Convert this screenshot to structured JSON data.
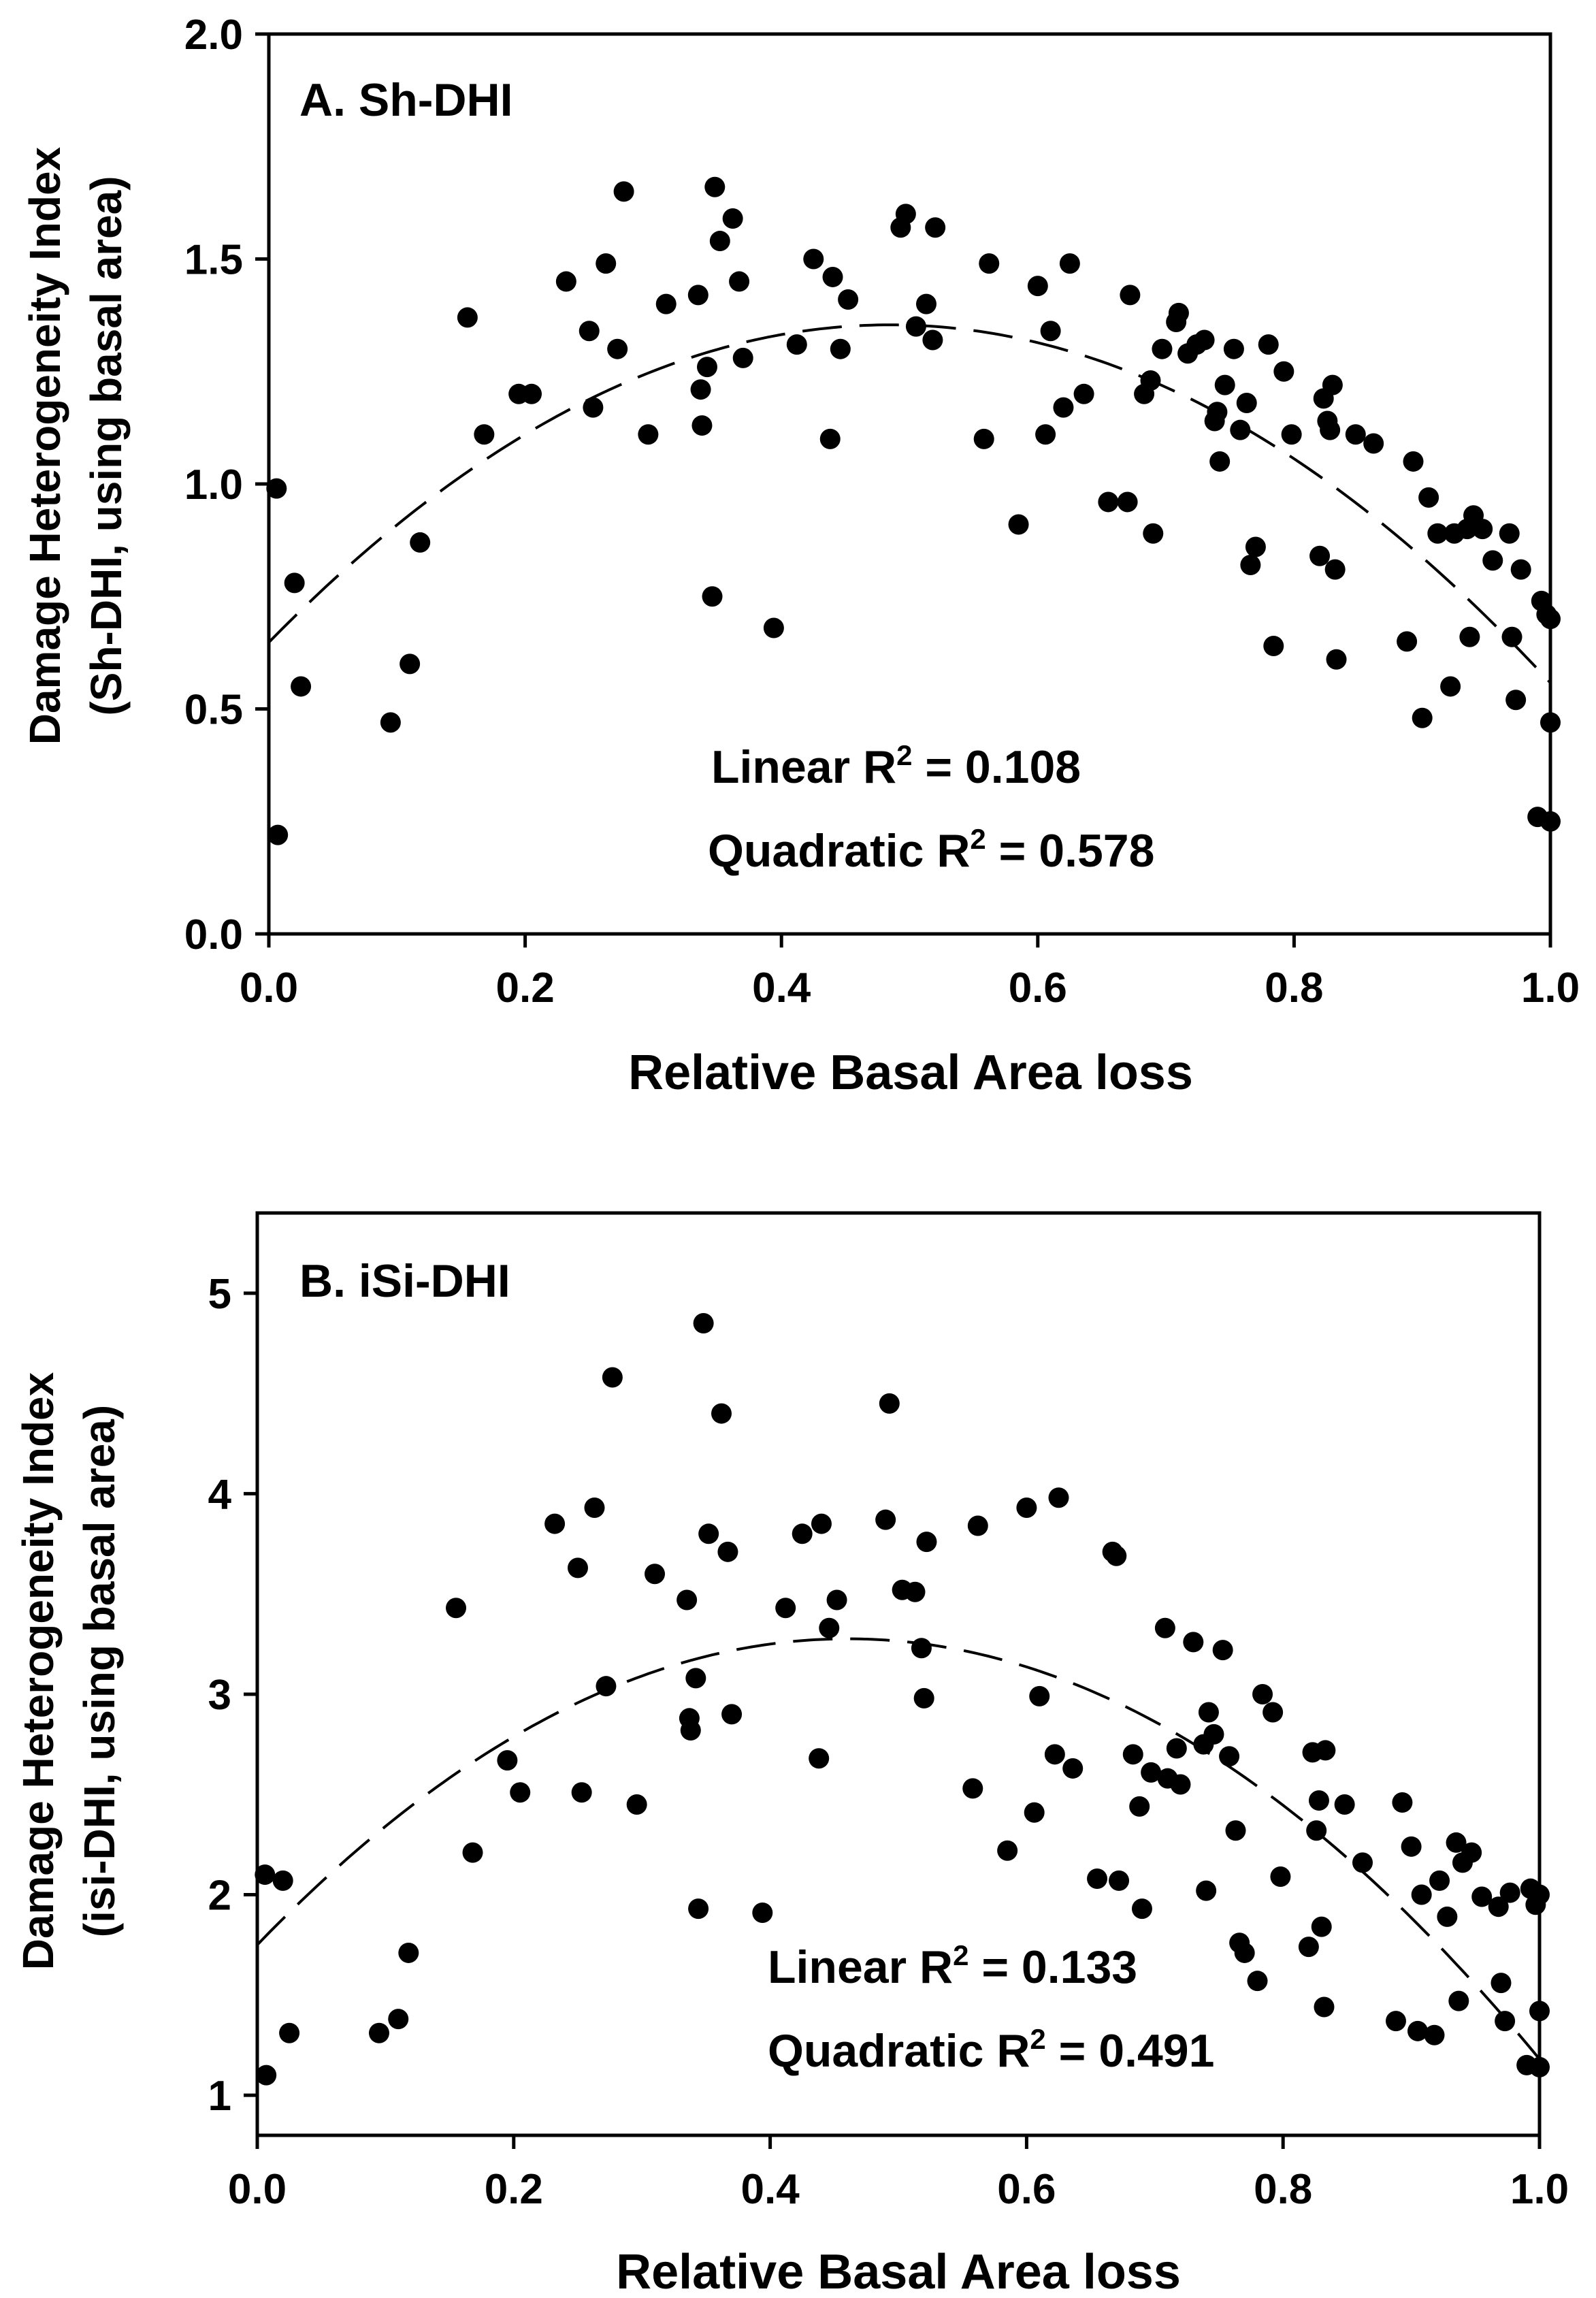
{
  "chart_data": [
    {
      "type": "scatter",
      "panel_label": "A. Sh-DHI",
      "xlabel": "Relative Basal Area loss",
      "ylabel_line1": "Damage Heterogeneity Index",
      "ylabel_line2": "(Sh-DHI, using basal area)",
      "xlim": [
        0,
        1
      ],
      "ylim": [
        0,
        2
      ],
      "x_ticks": [
        "0.0",
        "0.2",
        "0.4",
        "0.6",
        "0.8",
        "1.0"
      ],
      "y_ticks": [
        "0.0",
        "0.5",
        "1.0",
        "1.5",
        "2.0"
      ],
      "annotation_linear": "Linear R² = 0.108",
      "annotation_quadratic": "Quadratic R² = 0.578",
      "fit": {
        "kind": "quadratic",
        "label": "Quadratic fit",
        "coefficients": [
          0.648,
          2.91,
          -3.0
        ]
      },
      "points": [
        [
          0.006,
          0.99
        ],
        [
          0.007,
          0.22
        ],
        [
          0.02,
          0.78
        ],
        [
          0.025,
          0.55
        ],
        [
          0.095,
          0.47
        ],
        [
          0.11,
          0.6
        ],
        [
          0.118,
          0.87
        ],
        [
          0.155,
          1.37
        ],
        [
          0.168,
          1.11
        ],
        [
          0.195,
          1.2
        ],
        [
          0.205,
          1.2
        ],
        [
          0.232,
          1.45
        ],
        [
          0.25,
          1.34
        ],
        [
          0.253,
          1.17
        ],
        [
          0.263,
          1.49
        ],
        [
          0.272,
          1.3
        ],
        [
          0.277,
          1.65
        ],
        [
          0.296,
          1.11
        ],
        [
          0.31,
          1.4
        ],
        [
          0.335,
          1.42
        ],
        [
          0.337,
          1.21
        ],
        [
          0.338,
          1.13
        ],
        [
          0.342,
          1.26
        ],
        [
          0.346,
          0.75
        ],
        [
          0.348,
          1.66
        ],
        [
          0.352,
          1.54
        ],
        [
          0.362,
          1.59
        ],
        [
          0.367,
          1.45
        ],
        [
          0.37,
          1.28
        ],
        [
          0.394,
          0.68
        ],
        [
          0.412,
          1.31
        ],
        [
          0.425,
          1.5
        ],
        [
          0.438,
          1.1
        ],
        [
          0.44,
          1.46
        ],
        [
          0.446,
          1.3
        ],
        [
          0.452,
          1.41
        ],
        [
          0.493,
          1.57
        ],
        [
          0.497,
          1.6
        ],
        [
          0.505,
          1.35
        ],
        [
          0.513,
          1.4
        ],
        [
          0.518,
          1.32
        ],
        [
          0.52,
          1.57
        ],
        [
          0.558,
          1.1
        ],
        [
          0.562,
          1.49
        ],
        [
          0.585,
          0.91
        ],
        [
          0.6,
          1.44
        ],
        [
          0.606,
          1.11
        ],
        [
          0.61,
          1.34
        ],
        [
          0.62,
          1.17
        ],
        [
          0.625,
          1.49
        ],
        [
          0.636,
          1.2
        ],
        [
          0.655,
          0.96
        ],
        [
          0.67,
          0.96
        ],
        [
          0.672,
          1.42
        ],
        [
          0.683,
          1.2
        ],
        [
          0.688,
          1.23
        ],
        [
          0.69,
          0.89
        ],
        [
          0.697,
          1.3
        ],
        [
          0.708,
          1.36
        ],
        [
          0.71,
          1.38
        ],
        [
          0.717,
          1.29
        ],
        [
          0.724,
          1.31
        ],
        [
          0.73,
          1.32
        ],
        [
          0.738,
          1.14
        ],
        [
          0.74,
          1.16
        ],
        [
          0.742,
          1.05
        ],
        [
          0.746,
          1.22
        ],
        [
          0.753,
          1.3
        ],
        [
          0.758,
          1.12
        ],
        [
          0.763,
          1.18
        ],
        [
          0.766,
          0.82
        ],
        [
          0.77,
          0.86
        ],
        [
          0.78,
          1.31
        ],
        [
          0.784,
          0.64
        ],
        [
          0.792,
          1.25
        ],
        [
          0.798,
          1.11
        ],
        [
          0.82,
          0.84
        ],
        [
          0.823,
          1.19
        ],
        [
          0.826,
          1.14
        ],
        [
          0.828,
          1.12
        ],
        [
          0.83,
          1.22
        ],
        [
          0.832,
          0.81
        ],
        [
          0.833,
          0.61
        ],
        [
          0.848,
          1.11
        ],
        [
          0.862,
          1.09
        ],
        [
          0.888,
          0.65
        ],
        [
          0.893,
          1.05
        ],
        [
          0.9,
          0.48
        ],
        [
          0.905,
          0.97
        ],
        [
          0.912,
          0.89
        ],
        [
          0.922,
          0.55
        ],
        [
          0.925,
          0.89
        ],
        [
          0.935,
          0.9
        ],
        [
          0.937,
          0.66
        ],
        [
          0.94,
          0.93
        ],
        [
          0.947,
          0.9
        ],
        [
          0.955,
          0.83
        ],
        [
          0.968,
          0.89
        ],
        [
          0.97,
          0.66
        ],
        [
          0.973,
          0.52
        ],
        [
          0.977,
          0.81
        ],
        [
          0.99,
          0.26
        ],
        [
          0.993,
          0.74
        ],
        [
          0.997,
          0.71
        ],
        [
          1.0,
          0.47
        ],
        [
          1.0,
          0.25
        ],
        [
          1.0,
          0.7
        ]
      ]
    },
    {
      "type": "scatter",
      "panel_label": "B. iSi-DHI",
      "xlabel": "Relative Basal Area loss",
      "ylabel_line1": "Damage Heterogeneity Index",
      "ylabel_line2": "(isi-DHI, using basal area)",
      "xlim": [
        0,
        1
      ],
      "ylim": [
        0.8,
        5.4
      ],
      "x_ticks": [
        "0.0",
        "0.2",
        "0.4",
        "0.6",
        "0.8",
        "1.0"
      ],
      "y_ticks": [
        "1",
        "2",
        "3",
        "4",
        "5"
      ],
      "annotation_linear": "Linear R² = 0.133",
      "annotation_quadratic": "Quadratic R² = 0.491",
      "fit": {
        "kind": "quadratic",
        "label": "Quadratic fit",
        "coefficients": [
          1.75,
          6.63,
          -7.2
        ]
      },
      "points": [
        [
          0.006,
          2.1
        ],
        [
          0.007,
          1.1
        ],
        [
          0.02,
          2.07
        ],
        [
          0.025,
          1.31
        ],
        [
          0.095,
          1.31
        ],
        [
          0.11,
          1.38
        ],
        [
          0.118,
          1.71
        ],
        [
          0.155,
          3.43
        ],
        [
          0.168,
          2.21
        ],
        [
          0.195,
          2.67
        ],
        [
          0.205,
          2.51
        ],
        [
          0.232,
          3.85
        ],
        [
          0.25,
          3.63
        ],
        [
          0.253,
          2.51
        ],
        [
          0.263,
          3.93
        ],
        [
          0.272,
          3.04
        ],
        [
          0.277,
          4.58
        ],
        [
          0.296,
          2.45
        ],
        [
          0.31,
          3.6
        ],
        [
          0.335,
          3.47
        ],
        [
          0.337,
          2.88
        ],
        [
          0.338,
          2.82
        ],
        [
          0.342,
          3.08
        ],
        [
          0.344,
          1.93
        ],
        [
          0.348,
          4.85
        ],
        [
          0.352,
          3.8
        ],
        [
          0.362,
          4.4
        ],
        [
          0.367,
          3.71
        ],
        [
          0.37,
          2.9
        ],
        [
          0.394,
          1.91
        ],
        [
          0.412,
          3.43
        ],
        [
          0.425,
          3.8
        ],
        [
          0.438,
          2.68
        ],
        [
          0.44,
          3.85
        ],
        [
          0.446,
          3.33
        ],
        [
          0.452,
          3.47
        ],
        [
          0.49,
          3.87
        ],
        [
          0.493,
          4.45
        ],
        [
          0.503,
          3.52
        ],
        [
          0.513,
          3.51
        ],
        [
          0.518,
          3.23
        ],
        [
          0.52,
          2.98
        ],
        [
          0.522,
          3.76
        ],
        [
          0.558,
          2.53
        ],
        [
          0.562,
          3.84
        ],
        [
          0.585,
          2.22
        ],
        [
          0.6,
          3.93
        ],
        [
          0.606,
          2.41
        ],
        [
          0.61,
          2.99
        ],
        [
          0.622,
          2.7
        ],
        [
          0.625,
          3.98
        ],
        [
          0.636,
          2.63
        ],
        [
          0.655,
          2.08
        ],
        [
          0.667,
          3.71
        ],
        [
          0.67,
          3.69
        ],
        [
          0.672,
          2.07
        ],
        [
          0.683,
          2.7
        ],
        [
          0.688,
          2.44
        ],
        [
          0.69,
          1.93
        ],
        [
          0.697,
          2.61
        ],
        [
          0.708,
          3.33
        ],
        [
          0.71,
          2.58
        ],
        [
          0.717,
          2.73
        ],
        [
          0.72,
          2.55
        ],
        [
          0.73,
          3.26
        ],
        [
          0.738,
          2.75
        ],
        [
          0.74,
          2.02
        ],
        [
          0.742,
          2.91
        ],
        [
          0.746,
          2.8
        ],
        [
          0.753,
          3.22
        ],
        [
          0.758,
          2.69
        ],
        [
          0.763,
          2.32
        ],
        [
          0.766,
          1.76
        ],
        [
          0.77,
          1.71
        ],
        [
          0.78,
          1.57
        ],
        [
          0.784,
          3.0
        ],
        [
          0.792,
          2.91
        ],
        [
          0.798,
          2.09
        ],
        [
          0.82,
          1.74
        ],
        [
          0.823,
          2.71
        ],
        [
          0.826,
          2.32
        ],
        [
          0.828,
          2.47
        ],
        [
          0.83,
          1.84
        ],
        [
          0.832,
          1.44
        ],
        [
          0.833,
          2.72
        ],
        [
          0.848,
          2.45
        ],
        [
          0.862,
          2.16
        ],
        [
          0.888,
          1.37
        ],
        [
          0.893,
          2.46
        ],
        [
          0.9,
          2.24
        ],
        [
          0.905,
          1.32
        ],
        [
          0.908,
          2.0
        ],
        [
          0.918,
          1.3
        ],
        [
          0.922,
          2.07
        ],
        [
          0.928,
          1.89
        ],
        [
          0.935,
          2.26
        ],
        [
          0.937,
          1.47
        ],
        [
          0.94,
          2.16
        ],
        [
          0.947,
          2.21
        ],
        [
          0.955,
          1.99
        ],
        [
          0.968,
          1.94
        ],
        [
          0.97,
          1.56
        ],
        [
          0.973,
          1.37
        ],
        [
          0.977,
          2.01
        ],
        [
          0.99,
          1.15
        ],
        [
          0.993,
          2.03
        ],
        [
          0.997,
          1.95
        ],
        [
          1.0,
          1.14
        ],
        [
          1.0,
          2.0
        ],
        [
          1.0,
          1.42
        ]
      ]
    }
  ]
}
